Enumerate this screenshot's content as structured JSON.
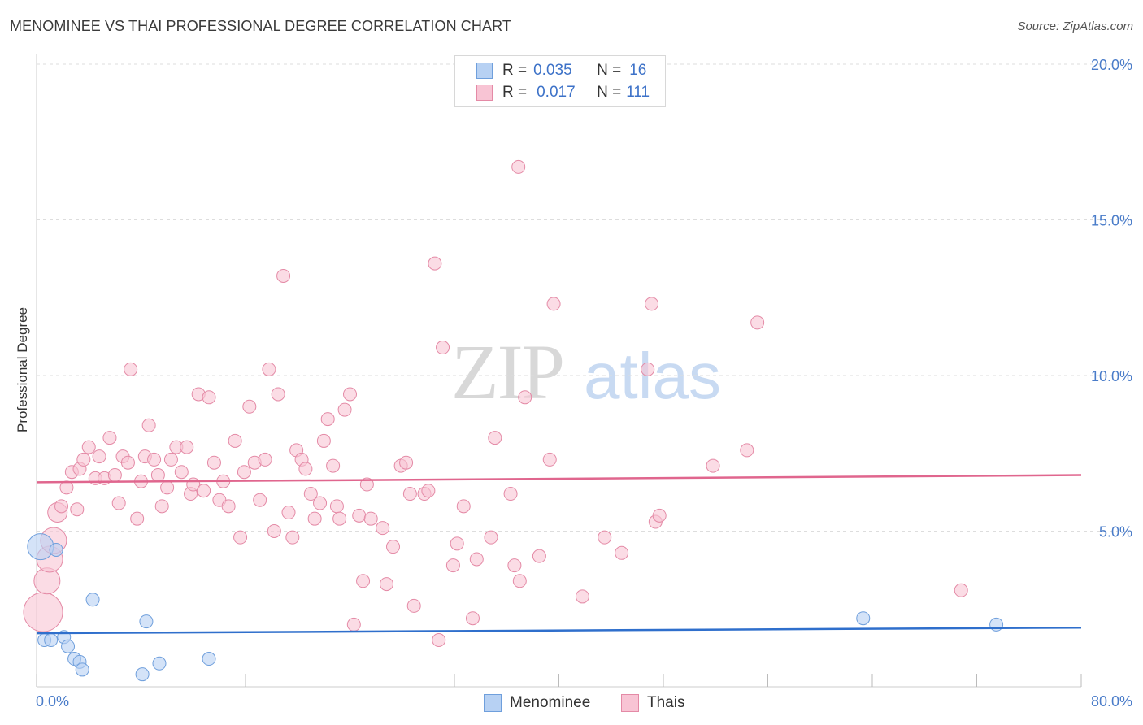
{
  "title": "MENOMINEE VS THAI PROFESSIONAL DEGREE CORRELATION CHART",
  "source": "Source: ZipAtlas.com",
  "watermark": {
    "zip": "ZIP",
    "atlas": "atlas"
  },
  "legend": {
    "rows": [
      {
        "r_label": "R =",
        "r_value": "0.035",
        "n_label": "N =",
        "n_value": "16"
      },
      {
        "r_label": "R =",
        "r_value": "0.017",
        "n_label": "N =",
        "n_value": "111"
      }
    ]
  },
  "bottom_legend": {
    "series1": "Menominee",
    "series2": "Thais"
  },
  "colors": {
    "menominee_fill": "#b7d1f3",
    "menominee_stroke": "#6f9fdc",
    "menominee_line": "#2f6fcc",
    "thai_fill": "#f8c4d4",
    "thai_stroke": "#e48aa6",
    "thai_line": "#e0668e",
    "grid": "#dddddd",
    "axis_text": "#4a7cc9"
  },
  "chart_data": {
    "type": "scatter",
    "title": "MENOMINEE VS THAI PROFESSIONAL DEGREE CORRELATION CHART",
    "xlabel": "",
    "ylabel": "Professional Degree",
    "xlim": [
      0,
      80
    ],
    "ylim": [
      0,
      20
    ],
    "x_tick_labels": [
      "0.0%",
      "80.0%"
    ],
    "y_ticks": [
      5,
      10,
      15,
      20
    ],
    "y_tick_labels": [
      "5.0%",
      "10.0%",
      "15.0%",
      "20.0%"
    ],
    "grid": true,
    "legend_position": "top-center",
    "series": [
      {
        "name": "Menominee",
        "r": 0.035,
        "n": 16,
        "trend": [
          [
            0,
            1.72
          ],
          [
            80,
            1.9
          ]
        ],
        "points": [
          [
            0.3,
            4.5,
            2
          ],
          [
            1.5,
            4.4,
            1
          ],
          [
            0.6,
            1.5,
            1
          ],
          [
            1.1,
            1.5,
            1
          ],
          [
            2.1,
            1.6,
            1
          ],
          [
            2.4,
            1.3,
            1
          ],
          [
            2.9,
            0.9,
            1
          ],
          [
            3.3,
            0.8,
            1
          ],
          [
            3.5,
            0.55,
            1
          ],
          [
            4.3,
            2.8,
            1
          ],
          [
            8.4,
            2.1,
            1
          ],
          [
            8.1,
            0.4,
            1
          ],
          [
            9.4,
            0.75,
            1
          ],
          [
            13.2,
            0.9,
            1
          ],
          [
            63.3,
            2.2,
            1
          ],
          [
            73.5,
            2.0,
            1
          ]
        ]
      },
      {
        "name": "Thais",
        "r": 0.017,
        "n": 111,
        "trend": [
          [
            0,
            6.57
          ],
          [
            80,
            6.8
          ]
        ],
        "points": [
          [
            0.5,
            2.4,
            3
          ],
          [
            0.8,
            3.4,
            2
          ],
          [
            1.0,
            4.1,
            2
          ],
          [
            1.3,
            4.7,
            2
          ],
          [
            1.6,
            5.6,
            1.5
          ],
          [
            1.9,
            5.8,
            1
          ],
          [
            2.3,
            6.4,
            1
          ],
          [
            2.7,
            6.9,
            1
          ],
          [
            3.1,
            5.7,
            1
          ],
          [
            3.3,
            7.0,
            1
          ],
          [
            3.6,
            7.3,
            1
          ],
          [
            4.0,
            7.7,
            1
          ],
          [
            4.5,
            6.7,
            1
          ],
          [
            4.8,
            7.4,
            1
          ],
          [
            5.2,
            6.7,
            1
          ],
          [
            5.6,
            8.0,
            1
          ],
          [
            6.0,
            6.8,
            1
          ],
          [
            6.3,
            5.9,
            1
          ],
          [
            6.6,
            7.4,
            1
          ],
          [
            7.0,
            7.2,
            1
          ],
          [
            7.2,
            10.2,
            1
          ],
          [
            7.7,
            5.4,
            1
          ],
          [
            8.0,
            6.6,
            1
          ],
          [
            8.3,
            7.4,
            1
          ],
          [
            8.6,
            8.4,
            1
          ],
          [
            9.0,
            7.3,
            1
          ],
          [
            9.3,
            6.8,
            1
          ],
          [
            9.6,
            5.8,
            1
          ],
          [
            10.0,
            6.4,
            1
          ],
          [
            10.3,
            7.3,
            1
          ],
          [
            10.7,
            7.7,
            1
          ],
          [
            11.1,
            6.9,
            1
          ],
          [
            11.5,
            7.7,
            1
          ],
          [
            11.8,
            6.2,
            1
          ],
          [
            12.0,
            6.5,
            1
          ],
          [
            12.4,
            9.4,
            1
          ],
          [
            12.8,
            6.3,
            1
          ],
          [
            13.2,
            9.3,
            1
          ],
          [
            13.6,
            7.2,
            1
          ],
          [
            14.0,
            6.0,
            1
          ],
          [
            14.3,
            6.6,
            1
          ],
          [
            14.7,
            5.8,
            1
          ],
          [
            15.2,
            7.9,
            1
          ],
          [
            15.6,
            4.8,
            1
          ],
          [
            15.9,
            6.9,
            1
          ],
          [
            16.3,
            9.0,
            1
          ],
          [
            16.7,
            7.2,
            1
          ],
          [
            17.1,
            6.0,
            1
          ],
          [
            17.5,
            7.3,
            1
          ],
          [
            17.8,
            10.2,
            1
          ],
          [
            18.2,
            5.0,
            1
          ],
          [
            18.5,
            9.4,
            1
          ],
          [
            18.9,
            13.2,
            1
          ],
          [
            19.3,
            5.6,
            1
          ],
          [
            19.6,
            4.8,
            1
          ],
          [
            19.9,
            7.6,
            1
          ],
          [
            20.3,
            7.3,
            1
          ],
          [
            20.6,
            7.0,
            1
          ],
          [
            21.0,
            6.2,
            1
          ],
          [
            21.3,
            5.4,
            1
          ],
          [
            21.7,
            5.9,
            1
          ],
          [
            22.0,
            7.9,
            1
          ],
          [
            22.3,
            8.6,
            1
          ],
          [
            22.7,
            7.1,
            1
          ],
          [
            23.0,
            5.8,
            1
          ],
          [
            23.2,
            5.4,
            1
          ],
          [
            23.6,
            8.9,
            1
          ],
          [
            24.0,
            9.4,
            1
          ],
          [
            24.3,
            2.0,
            1
          ],
          [
            24.7,
            5.5,
            1
          ],
          [
            25.0,
            3.4,
            1
          ],
          [
            25.3,
            6.5,
            1
          ],
          [
            25.6,
            5.4,
            1
          ],
          [
            26.5,
            5.1,
            1
          ],
          [
            26.8,
            3.3,
            1
          ],
          [
            27.3,
            4.5,
            1
          ],
          [
            27.9,
            7.1,
            1
          ],
          [
            28.3,
            7.2,
            1
          ],
          [
            28.6,
            6.2,
            1
          ],
          [
            28.9,
            2.6,
            1
          ],
          [
            29.7,
            6.2,
            1
          ],
          [
            30.0,
            6.3,
            1
          ],
          [
            30.5,
            13.6,
            1
          ],
          [
            30.8,
            1.5,
            1
          ],
          [
            31.1,
            10.9,
            1
          ],
          [
            31.9,
            3.9,
            1
          ],
          [
            32.2,
            4.6,
            1
          ],
          [
            32.7,
            5.8,
            1
          ],
          [
            33.4,
            2.2,
            1
          ],
          [
            33.7,
            4.1,
            1
          ],
          [
            34.8,
            4.8,
            1
          ],
          [
            35.1,
            8.0,
            1
          ],
          [
            36.3,
            6.2,
            1
          ],
          [
            36.6,
            3.9,
            1
          ],
          [
            37.0,
            3.4,
            1
          ],
          [
            36.9,
            16.7,
            1
          ],
          [
            37.4,
            9.3,
            1
          ],
          [
            38.5,
            4.2,
            1
          ],
          [
            39.3,
            7.3,
            1
          ],
          [
            39.6,
            12.3,
            1
          ],
          [
            41.8,
            2.9,
            1
          ],
          [
            43.5,
            4.8,
            1
          ],
          [
            44.8,
            4.3,
            1
          ],
          [
            46.8,
            10.2,
            1
          ],
          [
            47.1,
            12.3,
            1
          ],
          [
            47.4,
            5.3,
            1
          ],
          [
            47.7,
            5.5,
            1
          ],
          [
            51.8,
            7.1,
            1
          ],
          [
            54.4,
            7.6,
            1
          ],
          [
            55.2,
            11.7,
            1
          ],
          [
            70.8,
            3.1,
            1
          ]
        ]
      }
    ]
  }
}
